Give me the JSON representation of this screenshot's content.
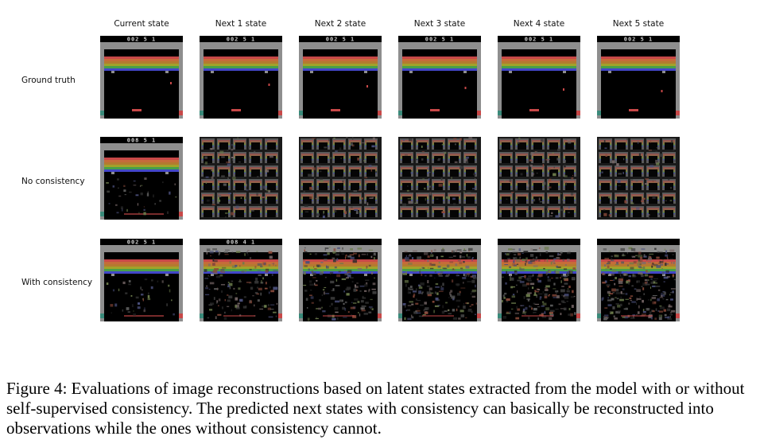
{
  "figure": {
    "columns": [
      "Current state",
      "Next 1 state",
      "Next 2 state",
      "Next 3 state",
      "Next 4 state",
      "Next 5 state"
    ],
    "rows": [
      {
        "label": "Ground truth",
        "frames": [
          {
            "score": "002 5 1",
            "kind": "clean"
          },
          {
            "score": "002 5 1",
            "kind": "clean"
          },
          {
            "score": "002 5 1",
            "kind": "clean"
          },
          {
            "score": "002 5 1",
            "kind": "clean"
          },
          {
            "score": "002 5 1",
            "kind": "clean"
          },
          {
            "score": "002 5 1",
            "kind": "clean"
          }
        ]
      },
      {
        "label": "No consistency",
        "frames": [
          {
            "score": "008 5 1",
            "kind": "recon"
          },
          {
            "score": "",
            "kind": "tiled"
          },
          {
            "score": "",
            "kind": "tiled"
          },
          {
            "score": "",
            "kind": "tiled"
          },
          {
            "score": "",
            "kind": "tiled"
          },
          {
            "score": "",
            "kind": "tiled"
          }
        ]
      },
      {
        "label": "With consistency",
        "frames": [
          {
            "score": "002 5 1",
            "kind": "recon"
          },
          {
            "score": "008 4 1",
            "kind": "noisy"
          },
          {
            "score": "",
            "kind": "noisy"
          },
          {
            "score": "",
            "kind": "noisy"
          },
          {
            "score": "",
            "kind": "noisy"
          },
          {
            "score": "",
            "kind": "noisy"
          }
        ]
      }
    ],
    "colors": {
      "wall": "#8e8e8e",
      "bricks": [
        "#c84848",
        "#c66c3a",
        "#b47a30",
        "#a2a22a",
        "#48a048",
        "#4246c8"
      ],
      "paddle": "#c84848",
      "background": "#000000"
    }
  },
  "caption": "Figure 4: Evaluations of image reconstructions based on latent states extracted from the model with or without self-supervised consistency. The predicted next states with consistency can basically be reconstructed into observations while the ones without consistency cannot."
}
